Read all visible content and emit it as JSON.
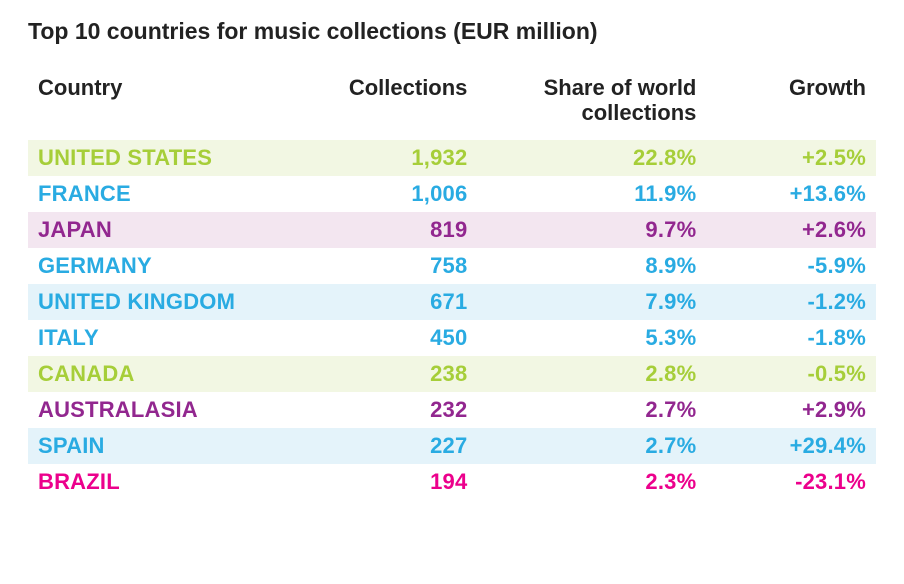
{
  "title": "Top 10 countries for music collections (EUR million)",
  "table": {
    "type": "table",
    "columns": [
      {
        "key": "country",
        "label": "Country",
        "align": "left"
      },
      {
        "key": "collections",
        "label": "Collections",
        "align": "right"
      },
      {
        "key": "share",
        "label": "Share of world collections",
        "align": "right"
      },
      {
        "key": "growth",
        "label": "Growth",
        "align": "right"
      }
    ],
    "colors": {
      "green": "#a6ce39",
      "blue": "#29abe2",
      "purple": "#92278f",
      "magenta": "#ec008c",
      "header_text": "#222222",
      "bg_green": "#f2f7e3",
      "bg_blue": "#e4f3fa",
      "bg_purple": "#f3e6f0",
      "bg_white": "#ffffff"
    },
    "fontsize_header": 22,
    "fontsize_cell": 22,
    "fontweight": 700,
    "rows": [
      {
        "country": "United States",
        "collections": "1,932",
        "share": "22.8%",
        "growth": "+2.5%",
        "text_color": "#a6ce39",
        "bg_color": "#f2f7e3"
      },
      {
        "country": "France",
        "collections": "1,006",
        "share": "11.9%",
        "growth": "+13.6%",
        "text_color": "#29abe2",
        "bg_color": "#ffffff"
      },
      {
        "country": "Japan",
        "collections": "819",
        "share": "9.7%",
        "growth": "+2.6%",
        "text_color": "#92278f",
        "bg_color": "#f3e6f0"
      },
      {
        "country": "Germany",
        "collections": "758",
        "share": "8.9%",
        "growth": "-5.9%",
        "text_color": "#29abe2",
        "bg_color": "#ffffff"
      },
      {
        "country": "United Kingdom",
        "collections": "671",
        "share": "7.9%",
        "growth": "-1.2%",
        "text_color": "#29abe2",
        "bg_color": "#e4f3fa"
      },
      {
        "country": "Italy",
        "collections": "450",
        "share": "5.3%",
        "growth": "-1.8%",
        "text_color": "#29abe2",
        "bg_color": "#ffffff"
      },
      {
        "country": "Canada",
        "collections": "238",
        "share": "2.8%",
        "growth": "-0.5%",
        "text_color": "#a6ce39",
        "bg_color": "#f2f7e3"
      },
      {
        "country": "Australasia",
        "collections": "232",
        "share": "2.7%",
        "growth": "+2.9%",
        "text_color": "#92278f",
        "bg_color": "#ffffff"
      },
      {
        "country": "Spain",
        "collections": "227",
        "share": "2.7%",
        "growth": "+29.4%",
        "text_color": "#29abe2",
        "bg_color": "#e4f3fa"
      },
      {
        "country": "Brazil",
        "collections": "194",
        "share": "2.3%",
        "growth": "-23.1%",
        "text_color": "#ec008c",
        "bg_color": "#ffffff"
      }
    ]
  }
}
